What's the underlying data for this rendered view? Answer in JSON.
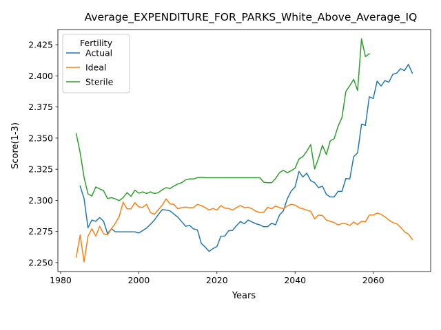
{
  "chart_data": {
    "type": "line",
    "title": "Average_EXPENDITURE_FOR_PARKS_White_Above_Average_IQ",
    "xlabel": "Years",
    "ylabel": "Score(1-3)",
    "xlim": [
      1979.3,
      2074.7
    ],
    "ylim": [
      2.2428,
      2.4372
    ],
    "xticks": [
      1980,
      2000,
      2020,
      2040,
      2060
    ],
    "yticks": [
      2.25,
      2.275,
      2.3,
      2.325,
      2.35,
      2.375,
      2.4,
      2.425
    ],
    "ytick_labels": [
      "2.250",
      "2.275",
      "2.300",
      "2.325",
      "2.350",
      "2.375",
      "2.400",
      "2.425"
    ],
    "grid": false,
    "legend": {
      "title": "Fertility",
      "placement": "top-left"
    },
    "series": [
      {
        "name": "Actual",
        "color": "#1f77b4",
        "x": [
          1985,
          1986,
          1987,
          1988,
          1989,
          1990,
          1991,
          1992,
          1993,
          1994,
          1995,
          1996,
          1997,
          1998,
          1999,
          2000,
          2001,
          2002,
          2003,
          2004,
          2005,
          2006,
          2007,
          2008,
          2009,
          2010,
          2011,
          2012,
          2013,
          2014,
          2015,
          2016,
          2017,
          2018,
          2019,
          2020,
          2021,
          2022,
          2023,
          2024,
          2025,
          2026,
          2027,
          2028,
          2029,
          2030,
          2031,
          2032,
          2033,
          2034,
          2035,
          2036,
          2037,
          2038,
          2039,
          2040,
          2041,
          2042,
          2043,
          2044,
          2045,
          2046,
          2047,
          2048,
          2049,
          2050,
          2051,
          2052,
          2053,
          2054,
          2055,
          2056,
          2057,
          2058,
          2059,
          2060,
          2061,
          2062,
          2063,
          2064,
          2065,
          2066,
          2067,
          2068,
          2069,
          2070
        ],
        "y": [
          2.3115,
          2.3015,
          2.278,
          2.2842,
          2.2832,
          2.2862,
          2.2832,
          2.2733,
          2.2772,
          2.2748,
          2.2747,
          2.2747,
          2.2747,
          2.2747,
          2.2747,
          2.2738,
          2.2757,
          2.2778,
          2.2808,
          2.2842,
          2.2886,
          2.2925,
          2.2922,
          2.2915,
          2.289,
          2.2865,
          2.2828,
          2.2792,
          2.2799,
          2.2771,
          2.2763,
          2.2654,
          2.2625,
          2.259,
          2.2613,
          2.2629,
          2.2712,
          2.2713,
          2.2756,
          2.2759,
          2.2796,
          2.283,
          2.2812,
          2.2842,
          2.2826,
          2.2812,
          2.2803,
          2.2788,
          2.2789,
          2.2816,
          2.2803,
          2.2882,
          2.2915,
          2.3012,
          2.3075,
          2.3108,
          2.3232,
          2.3188,
          2.3218,
          2.3158,
          2.3142,
          2.3102,
          2.3114,
          2.3048,
          2.3028,
          2.3028,
          2.3072,
          2.3072,
          2.3175,
          2.3172,
          2.3351,
          2.3382,
          2.3612,
          2.3603,
          2.3832,
          2.3818,
          2.3958,
          2.3918,
          2.3962,
          2.3949,
          2.4012,
          2.4022,
          2.4058,
          2.4042,
          2.4092,
          2.4022
        ]
      },
      {
        "name": "Ideal",
        "color": "#ff7f0e",
        "x": [
          1984,
          1985,
          1986,
          1987,
          1988,
          1989,
          1990,
          1991,
          1992,
          1993,
          1994,
          1995,
          1996,
          1997,
          1998,
          1999,
          2000,
          2001,
          2002,
          2003,
          2004,
          2005,
          2006,
          2007,
          2008,
          2009,
          2010,
          2011,
          2012,
          2013,
          2014,
          2015,
          2016,
          2017,
          2018,
          2019,
          2020,
          2021,
          2022,
          2023,
          2024,
          2025,
          2026,
          2027,
          2028,
          2029,
          2030,
          2031,
          2032,
          2033,
          2034,
          2035,
          2036,
          2037,
          2038,
          2039,
          2040,
          2041,
          2042,
          2043,
          2044,
          2045,
          2046,
          2047,
          2048,
          2049,
          2050,
          2051,
          2052,
          2053,
          2054,
          2055,
          2056,
          2057,
          2058,
          2059,
          2060,
          2061,
          2062,
          2063,
          2064,
          2065,
          2066,
          2067,
          2068,
          2069,
          2070
        ],
        "y": [
          2.2545,
          2.2722,
          2.2505,
          2.2712,
          2.2772,
          2.2712,
          2.2792,
          2.2732,
          2.2722,
          2.2772,
          2.2815,
          2.2872,
          2.2985,
          2.2932,
          2.2932,
          2.2982,
          2.2948,
          2.2944,
          2.2968,
          2.2902,
          2.2888,
          2.2925,
          2.2962,
          2.3012,
          2.2972,
          2.2968,
          2.2932,
          2.2942,
          2.2946,
          2.2941,
          2.2942,
          2.2968,
          2.2958,
          2.2942,
          2.2922,
          2.2935,
          2.2922,
          2.2958,
          2.2938,
          2.2935,
          2.2922,
          2.2942,
          2.2958,
          2.2942,
          2.2945,
          2.2932,
          2.2912,
          2.2902,
          2.2905,
          2.2945,
          2.2932,
          2.2955,
          2.2942,
          2.2932,
          2.2955,
          2.2968,
          2.2962,
          2.2942,
          2.2932,
          2.2922,
          2.2912,
          2.2852,
          2.2882,
          2.2878,
          2.2842,
          2.2832,
          2.2822,
          2.2802,
          2.2815,
          2.2812,
          2.2798,
          2.2826,
          2.2805,
          2.2832,
          2.2828,
          2.2882,
          2.2882,
          2.2898,
          2.2888,
          2.2868,
          2.2842,
          2.2822,
          2.2812,
          2.2785,
          2.2748,
          2.2728,
          2.2688
        ]
      },
      {
        "name": "Sterile",
        "color": "#2ca02c",
        "x": [
          1984,
          1985,
          1986,
          1987,
          1988,
          1989,
          1990,
          1991,
          1992,
          1993,
          1994,
          1995,
          1996,
          1997,
          1998,
          1999,
          2000,
          2001,
          2002,
          2003,
          2004,
          2005,
          2006,
          2007,
          2008,
          2009,
          2010,
          2011,
          2012,
          2013,
          2014,
          2015,
          2016,
          2017,
          2018,
          2019,
          2020,
          2021,
          2022,
          2023,
          2024,
          2025,
          2026,
          2027,
          2028,
          2029,
          2030,
          2031,
          2032,
          2033,
          2034,
          2035,
          2036,
          2037,
          2038,
          2039,
          2040,
          2041,
          2042,
          2043,
          2044,
          2045,
          2046,
          2047,
          2048,
          2049,
          2050,
          2051,
          2052,
          2053,
          2054,
          2055,
          2056,
          2057,
          2058,
          2059
        ],
        "y": [
          2.3535,
          2.3385,
          2.3185,
          2.3052,
          2.3035,
          2.3108,
          2.3092,
          2.3078,
          2.3015,
          2.3022,
          2.3012,
          2.2998,
          2.3022,
          2.3062,
          2.3032,
          2.3082,
          2.3058,
          2.3068,
          2.3055,
          2.3068,
          2.3055,
          2.3062,
          2.3085,
          2.3102,
          2.3095,
          2.3115,
          2.3132,
          2.3142,
          2.3165,
          2.3172,
          2.3172,
          2.3182,
          2.3185,
          2.3182,
          2.3182,
          2.3182,
          2.3182,
          2.3182,
          2.3182,
          2.3182,
          2.3182,
          2.3182,
          2.3182,
          2.3182,
          2.3182,
          2.3182,
          2.3182,
          2.3182,
          2.3145,
          2.3142,
          2.3142,
          2.3175,
          2.3222,
          2.3242,
          2.3222,
          2.3238,
          2.3258,
          2.3332,
          2.3352,
          2.3395,
          2.3448,
          2.3252,
          2.3338,
          2.3442,
          2.3368,
          2.3478,
          2.3495,
          2.3595,
          2.3665,
          2.3875,
          2.3922,
          2.3972,
          2.3882,
          2.4298,
          2.4155,
          2.4178
        ]
      }
    ]
  }
}
